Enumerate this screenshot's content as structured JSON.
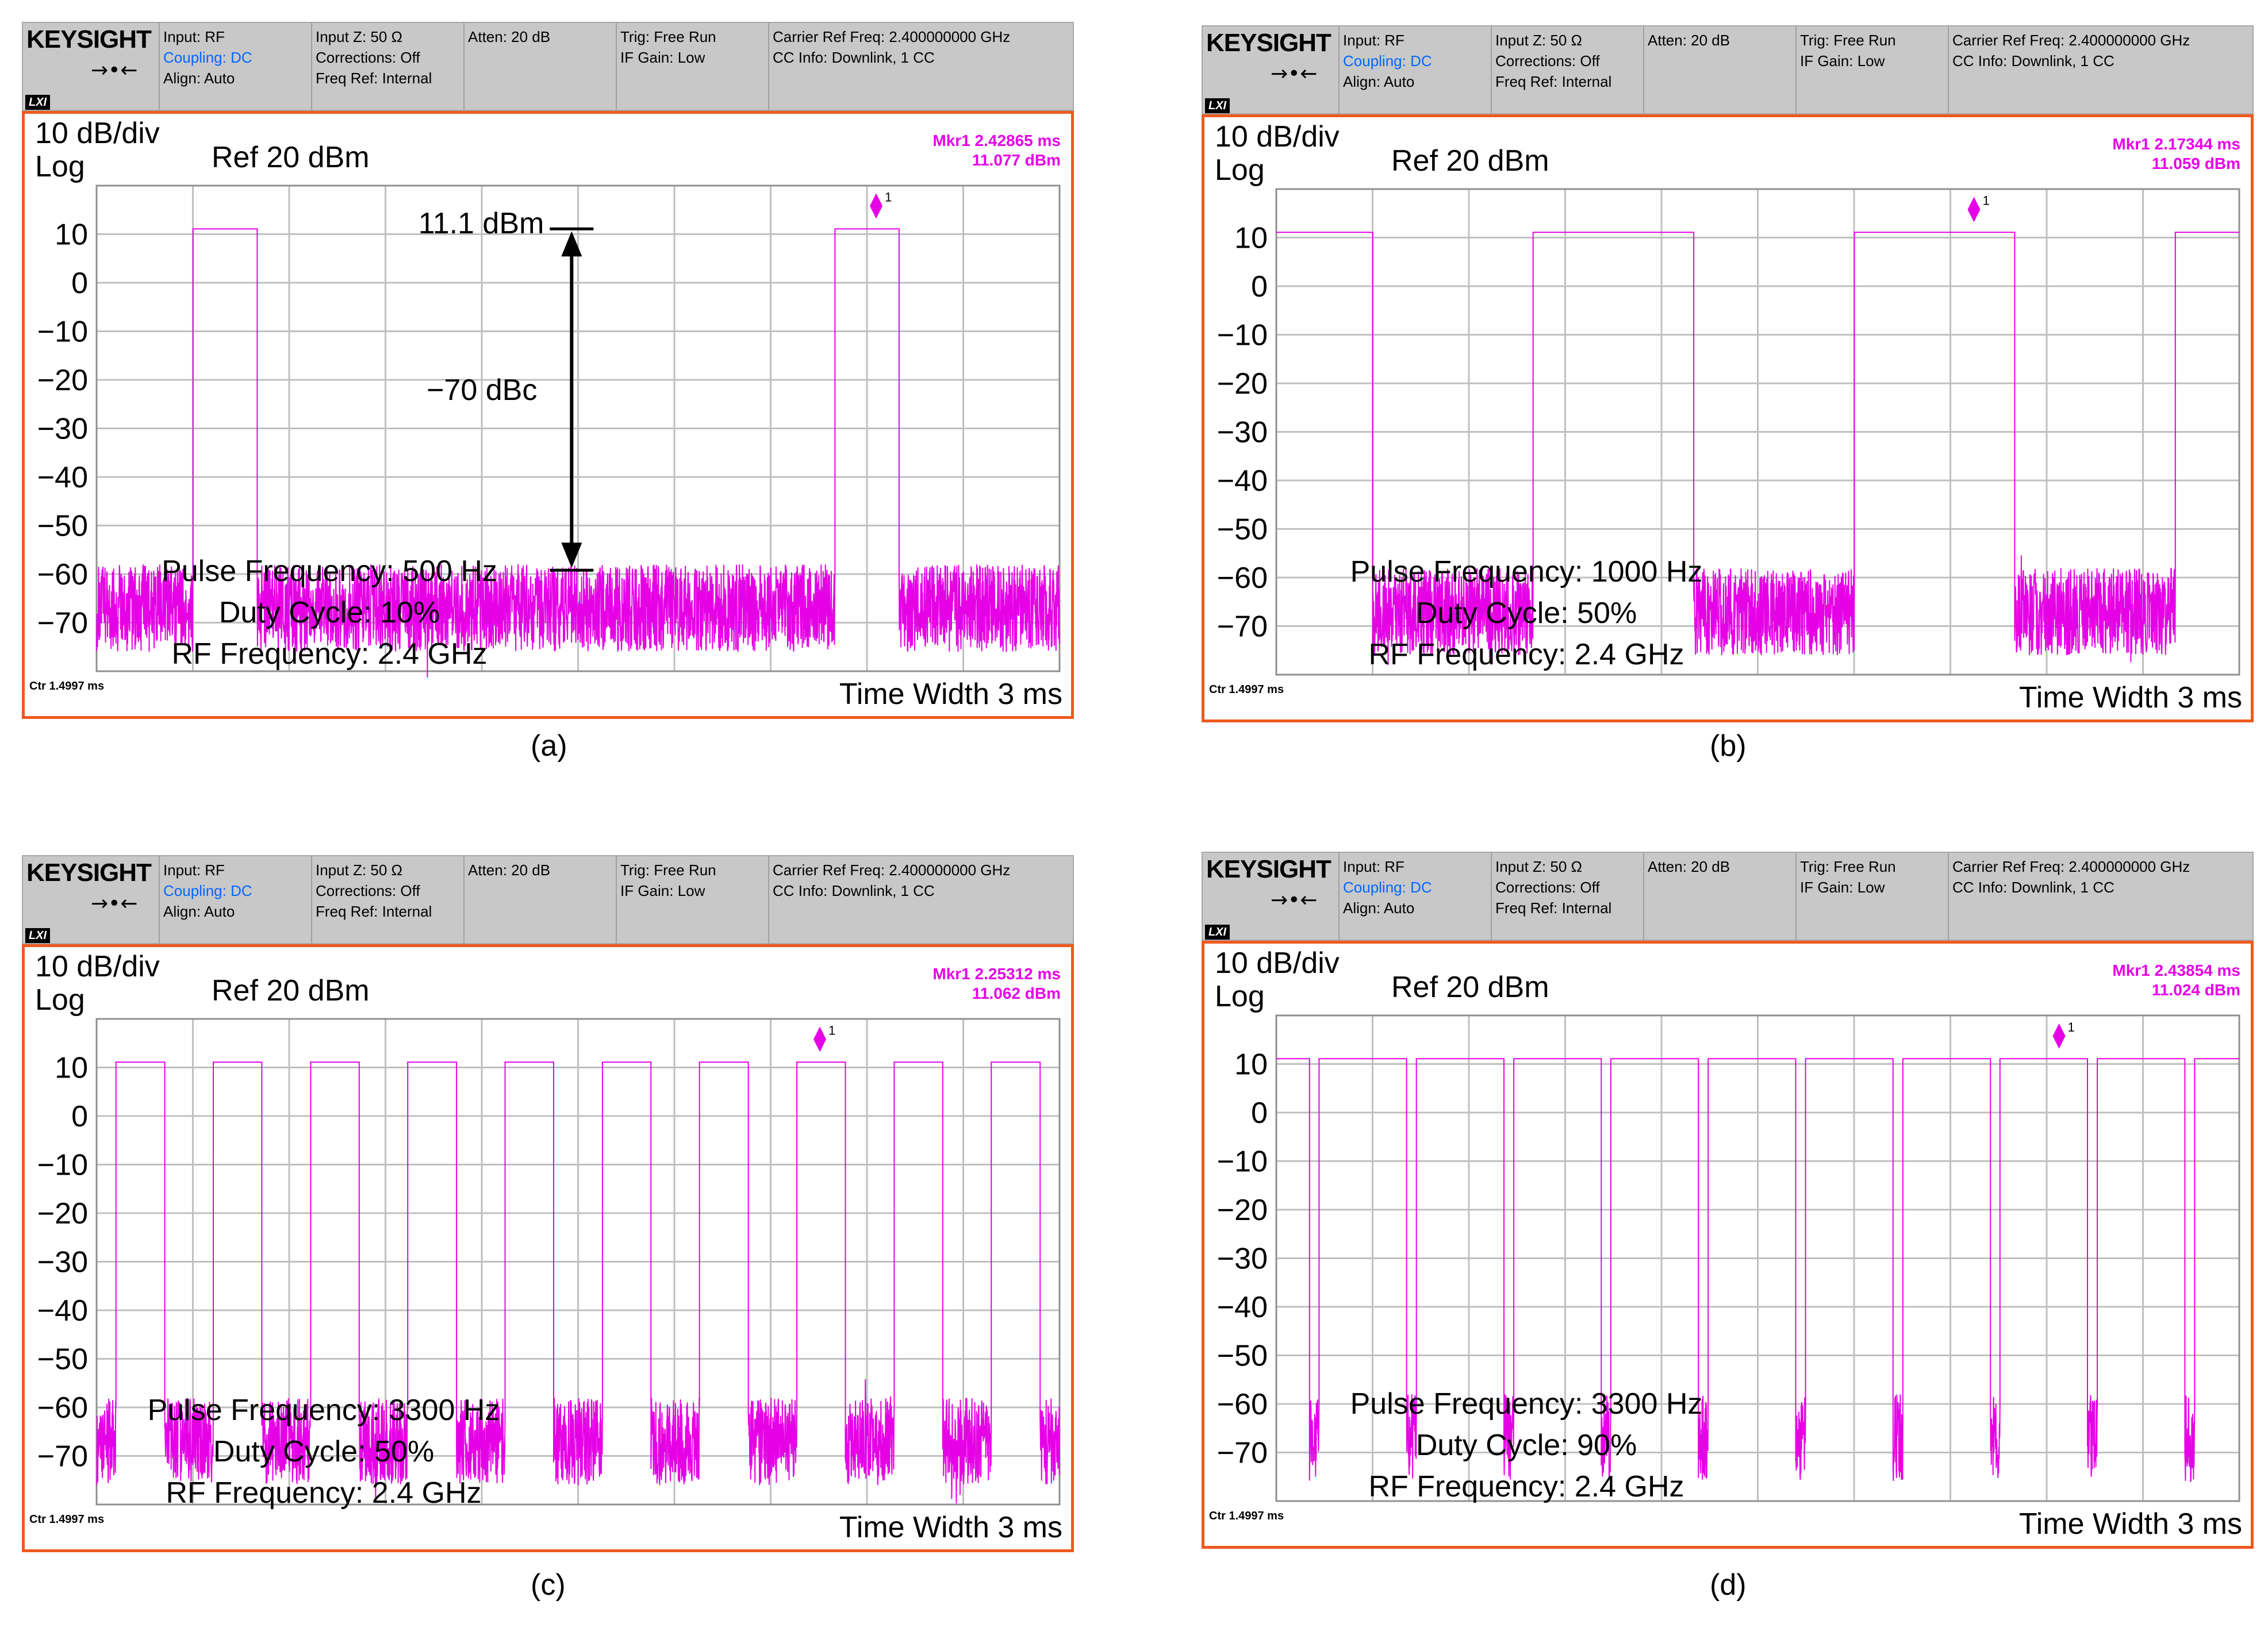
{
  "header": {
    "brand": "KEYSIGHT",
    "lxi": "LXI",
    "input": "Input: RF",
    "coupling": "Coupling: DC",
    "align": "Align: Auto",
    "input_z": "Input Z: 50 Ω",
    "corrections": "Corrections: Off",
    "freq_ref": "Freq Ref: Internal",
    "atten": "Atten: 20 dB",
    "trig": "Trig: Free Run",
    "if_gain": "IF Gain: Low",
    "carrier": "Carrier Ref Freq: 2.400000000 GHz",
    "cc_info": "CC Info: Downlink, 1 CC"
  },
  "display": {
    "scale": "10 dB/div",
    "log": "Log",
    "ref": "Ref  20 dBm",
    "ctr": "Ctr 1.4997 ms",
    "time_width": "Time Width 3 ms",
    "y_ticks": [
      "10",
      "0",
      "−10",
      "−20",
      "−30",
      "−40",
      "−50",
      "−60",
      "−70"
    ]
  },
  "colors": {
    "trace": "#e600e6",
    "frame": "#ee5a1e",
    "header": "#c8c8c8",
    "grid": "#c0c0c0"
  },
  "panels": [
    {
      "caption": "(a)",
      "marker": {
        "label": "Mkr1",
        "time": "2.42865 ms",
        "level": "11.077 dBm"
      },
      "info": [
        "Pulse Frequency: 500 Hz",
        "Duty Cycle: 10%",
        "RF Frequency: 2.4 GHz"
      ],
      "annotations": {
        "top_level": "11.1 dBm",
        "difference": "−70 dBc"
      }
    },
    {
      "caption": "(b)",
      "marker": {
        "label": "Mkr1",
        "time": "2.17344 ms",
        "level": "11.059 dBm"
      },
      "info": [
        "Pulse Frequency: 1000 Hz",
        "Duty Cycle: 50%",
        "RF Frequency: 2.4 GHz"
      ]
    },
    {
      "caption": "(c)",
      "marker": {
        "label": "Mkr1",
        "time": "2.25312 ms",
        "level": "11.062 dBm"
      },
      "info": [
        "Pulse Frequency: 3300 Hz",
        "Duty Cycle: 50%",
        "RF Frequency: 2.4 GHz"
      ]
    },
    {
      "caption": "(d)",
      "marker": {
        "label": "Mkr1",
        "time": "2.43854 ms",
        "level": "11.024 dBm"
      },
      "info": [
        "Pulse Frequency: 3300 Hz",
        "Duty Cycle: 90%",
        "RF Frequency: 2.4 GHz"
      ]
    }
  ],
  "chart_data": [
    {
      "type": "line",
      "x_range_ms": [
        0,
        3
      ],
      "ylim": [
        -80,
        20
      ],
      "ylabel": "dBm",
      "pulse_frequency_hz": 500,
      "duty_cycle": 0.1,
      "on_level_dbm": 11.1,
      "floor_dbm": -67,
      "first_on_ms": 0.3,
      "marker": {
        "x_ms": 2.42865,
        "y_dbm": 11.077
      }
    },
    {
      "type": "line",
      "x_range_ms": [
        0,
        3
      ],
      "ylim": [
        -80,
        20
      ],
      "ylabel": "dBm",
      "pulse_frequency_hz": 1000,
      "duty_cycle": 0.5,
      "on_level_dbm": 11.1,
      "floor_dbm": -67,
      "first_on_ms": -0.2,
      "marker": {
        "x_ms": 2.17344,
        "y_dbm": 11.059
      }
    },
    {
      "type": "line",
      "x_range_ms": [
        0,
        3
      ],
      "ylim": [
        -80,
        20
      ],
      "ylabel": "dBm",
      "pulse_frequency_hz": 3300,
      "duty_cycle": 0.5,
      "on_level_dbm": 11.1,
      "floor_dbm": -67,
      "first_on_ms": 0.06,
      "marker": {
        "x_ms": 2.25312,
        "y_dbm": 11.062
      }
    },
    {
      "type": "line",
      "x_range_ms": [
        0,
        3
      ],
      "ylim": [
        -80,
        20
      ],
      "ylabel": "dBm",
      "pulse_frequency_hz": 3300,
      "duty_cycle": 0.9,
      "on_level_dbm": 11.1,
      "floor_dbm": -67,
      "first_on_ms": -0.17,
      "marker": {
        "x_ms": 2.43854,
        "y_dbm": 11.024
      }
    }
  ]
}
